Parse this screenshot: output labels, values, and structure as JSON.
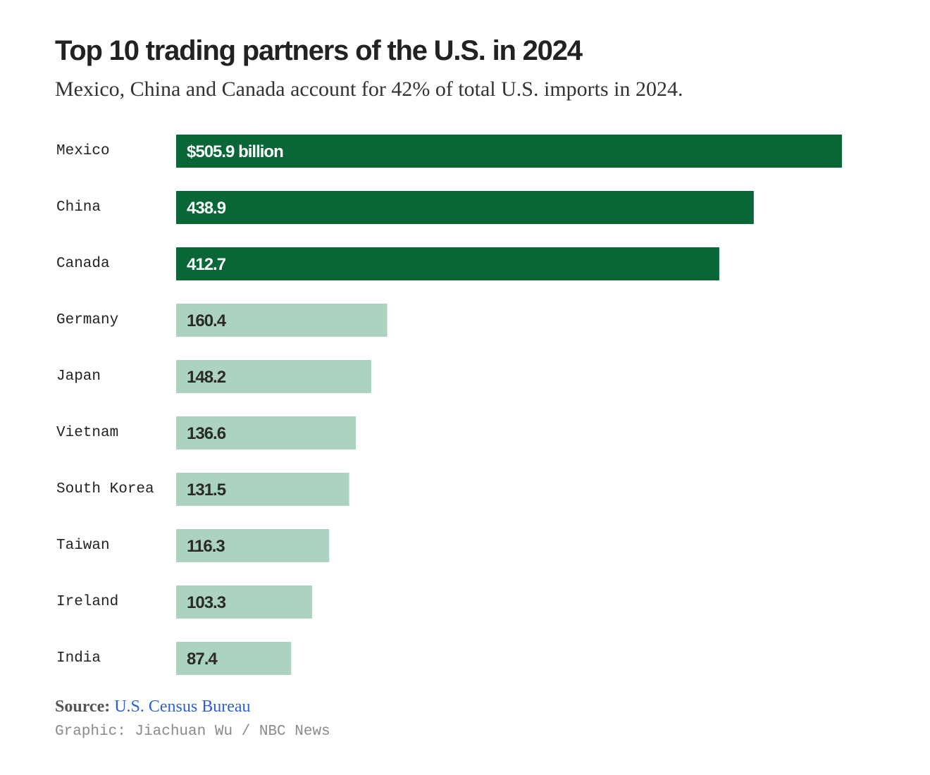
{
  "header": {
    "title": "Top 10 trading partners of the U.S. in 2024",
    "subtitle": "Mexico, China and Canada account for 42% of total U.S. imports in 2024."
  },
  "chart_data": {
    "type": "bar",
    "orientation": "horizontal",
    "title": "Top 10 trading partners of the U.S. in 2024",
    "subtitle": "Mexico, China and Canada account for 42% of total U.S. imports in 2024.",
    "categories": [
      "Mexico",
      "China",
      "Canada",
      "Germany",
      "Japan",
      "Vietnam",
      "South Korea",
      "Taiwan",
      "Ireland",
      "India"
    ],
    "values": [
      505.9,
      438.9,
      412.7,
      160.4,
      148.2,
      136.6,
      131.5,
      116.3,
      103.3,
      87.4
    ],
    "value_labels": [
      "$505.9 billion",
      "438.9",
      "412.7",
      "160.4",
      "148.2",
      "136.6",
      "131.5",
      "116.3",
      "103.3",
      "87.4"
    ],
    "xlim": [
      0,
      505.9
    ],
    "grid": false,
    "highlight": [
      "Mexico",
      "China",
      "Canada"
    ],
    "colors": {
      "highlight_bar": "#086637",
      "other_bar": "#acd3c0",
      "highlight_text": "#ffffff",
      "other_text": "#2a2a2a"
    }
  },
  "footer": {
    "source_label": "Source:",
    "source_name": "U.S. Census Bureau",
    "credit": "Graphic: Jiachuan Wu / NBC News"
  }
}
